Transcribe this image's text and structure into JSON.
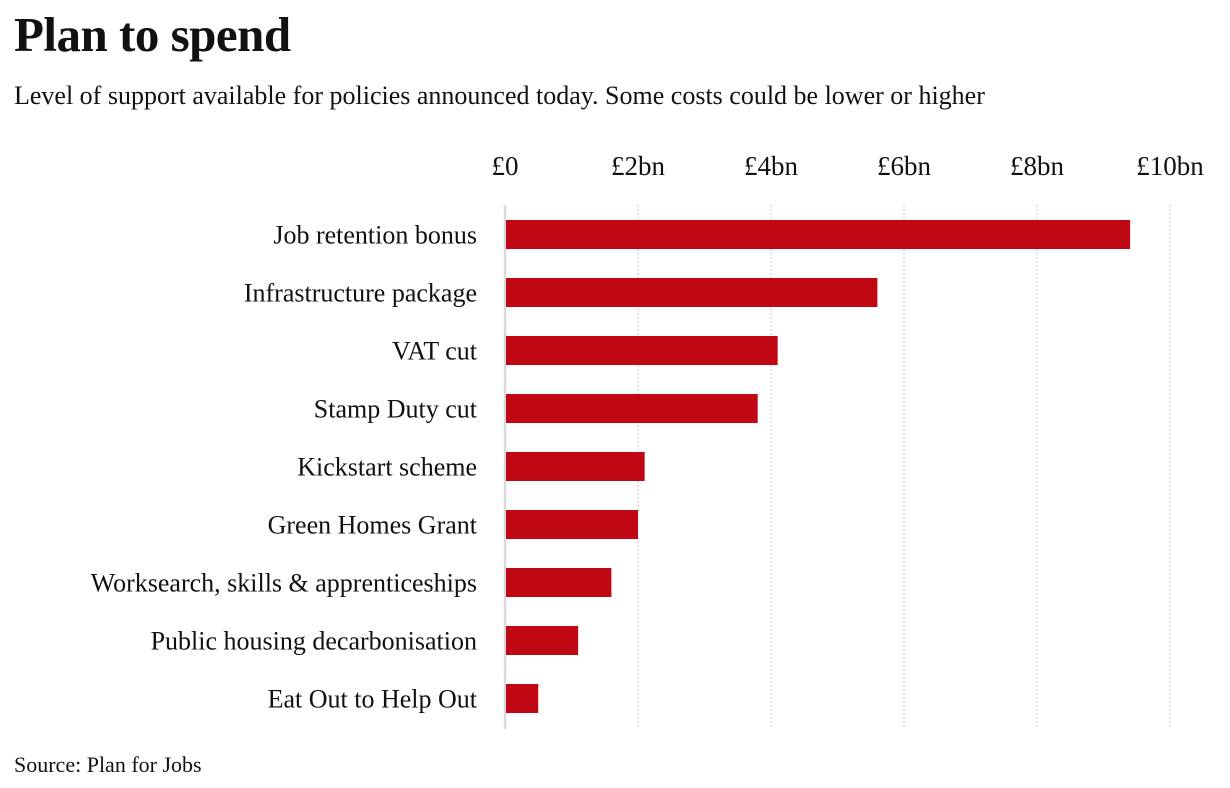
{
  "chart_data": {
    "type": "bar",
    "orientation": "horizontal",
    "title": "Plan to spend",
    "subtitle": "Level of support available for policies announced today. Some costs could be lower or higher",
    "source": "Source: Plan for Jobs",
    "xlabel": "",
    "ylabel": "",
    "units": "£bn",
    "xlim": [
      0,
      10
    ],
    "xticks": [
      0,
      2,
      4,
      6,
      8,
      10
    ],
    "xtick_labels": [
      "£0",
      "£2bn",
      "£4bn",
      "£6bn",
      "£8bn",
      "£10bn"
    ],
    "x_axis_position": "top",
    "grid": "vertical dotted",
    "categories": [
      "Job retention bonus",
      "Infrastructure package",
      "VAT cut",
      "Stamp Duty cut",
      "Kickstart scheme",
      "Green Homes Grant",
      "Worksearch, skills & apprenticeships",
      "Public housing decarbonisation",
      "Eat Out to Help Out"
    ],
    "values": [
      9.4,
      5.6,
      4.1,
      3.8,
      2.1,
      2.0,
      1.6,
      1.1,
      0.5
    ],
    "bar_color": "#c00815",
    "grid_color": "#d9d9d9"
  }
}
